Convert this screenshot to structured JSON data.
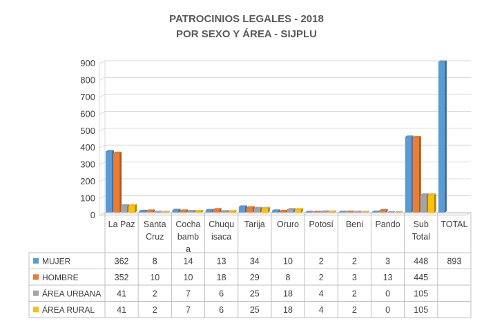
{
  "chart_data": {
    "type": "bar",
    "title": "PATROCINIOS LEGALES - 2018",
    "subtitle": "POR SEXO Y ÁREA - SIJPLU",
    "categories": [
      [
        "La Paz"
      ],
      [
        "Santa",
        "Cruz"
      ],
      [
        "Cocha",
        "bamb",
        "a"
      ],
      [
        "Chuqu",
        "isaca"
      ],
      [
        "Tarija"
      ],
      [
        "Oruro"
      ],
      [
        "Potosí"
      ],
      [
        "Beni"
      ],
      [
        "Pando"
      ],
      [
        "Sub",
        "Total"
      ],
      [
        "TOTAL"
      ]
    ],
    "series": [
      {
        "name": "MUJER",
        "color": "#5B9BD5",
        "values": [
          362,
          8,
          14,
          13,
          34,
          10,
          2,
          2,
          3,
          448,
          893
        ]
      },
      {
        "name": "HOMBRE",
        "color": "#ED7D31",
        "values": [
          352,
          10,
          10,
          18,
          29,
          8,
          2,
          3,
          13,
          445,
          null
        ]
      },
      {
        "name": "ÁREA URBANA",
        "color": "#A5A5A5",
        "values": [
          41,
          2,
          7,
          6,
          25,
          18,
          4,
          2,
          0,
          105,
          null
        ]
      },
      {
        "name": "ÁREA RURAL",
        "color": "#FFC000",
        "values": [
          41,
          2,
          7,
          6,
          25,
          18,
          4,
          2,
          0,
          105,
          null
        ]
      }
    ],
    "yticks": [
      0,
      100,
      200,
      300,
      400,
      500,
      600,
      700,
      800,
      900
    ],
    "ylim": [
      0,
      900
    ],
    "grid": true,
    "legend": "data-table",
    "xlabel": "",
    "ylabel": ""
  }
}
